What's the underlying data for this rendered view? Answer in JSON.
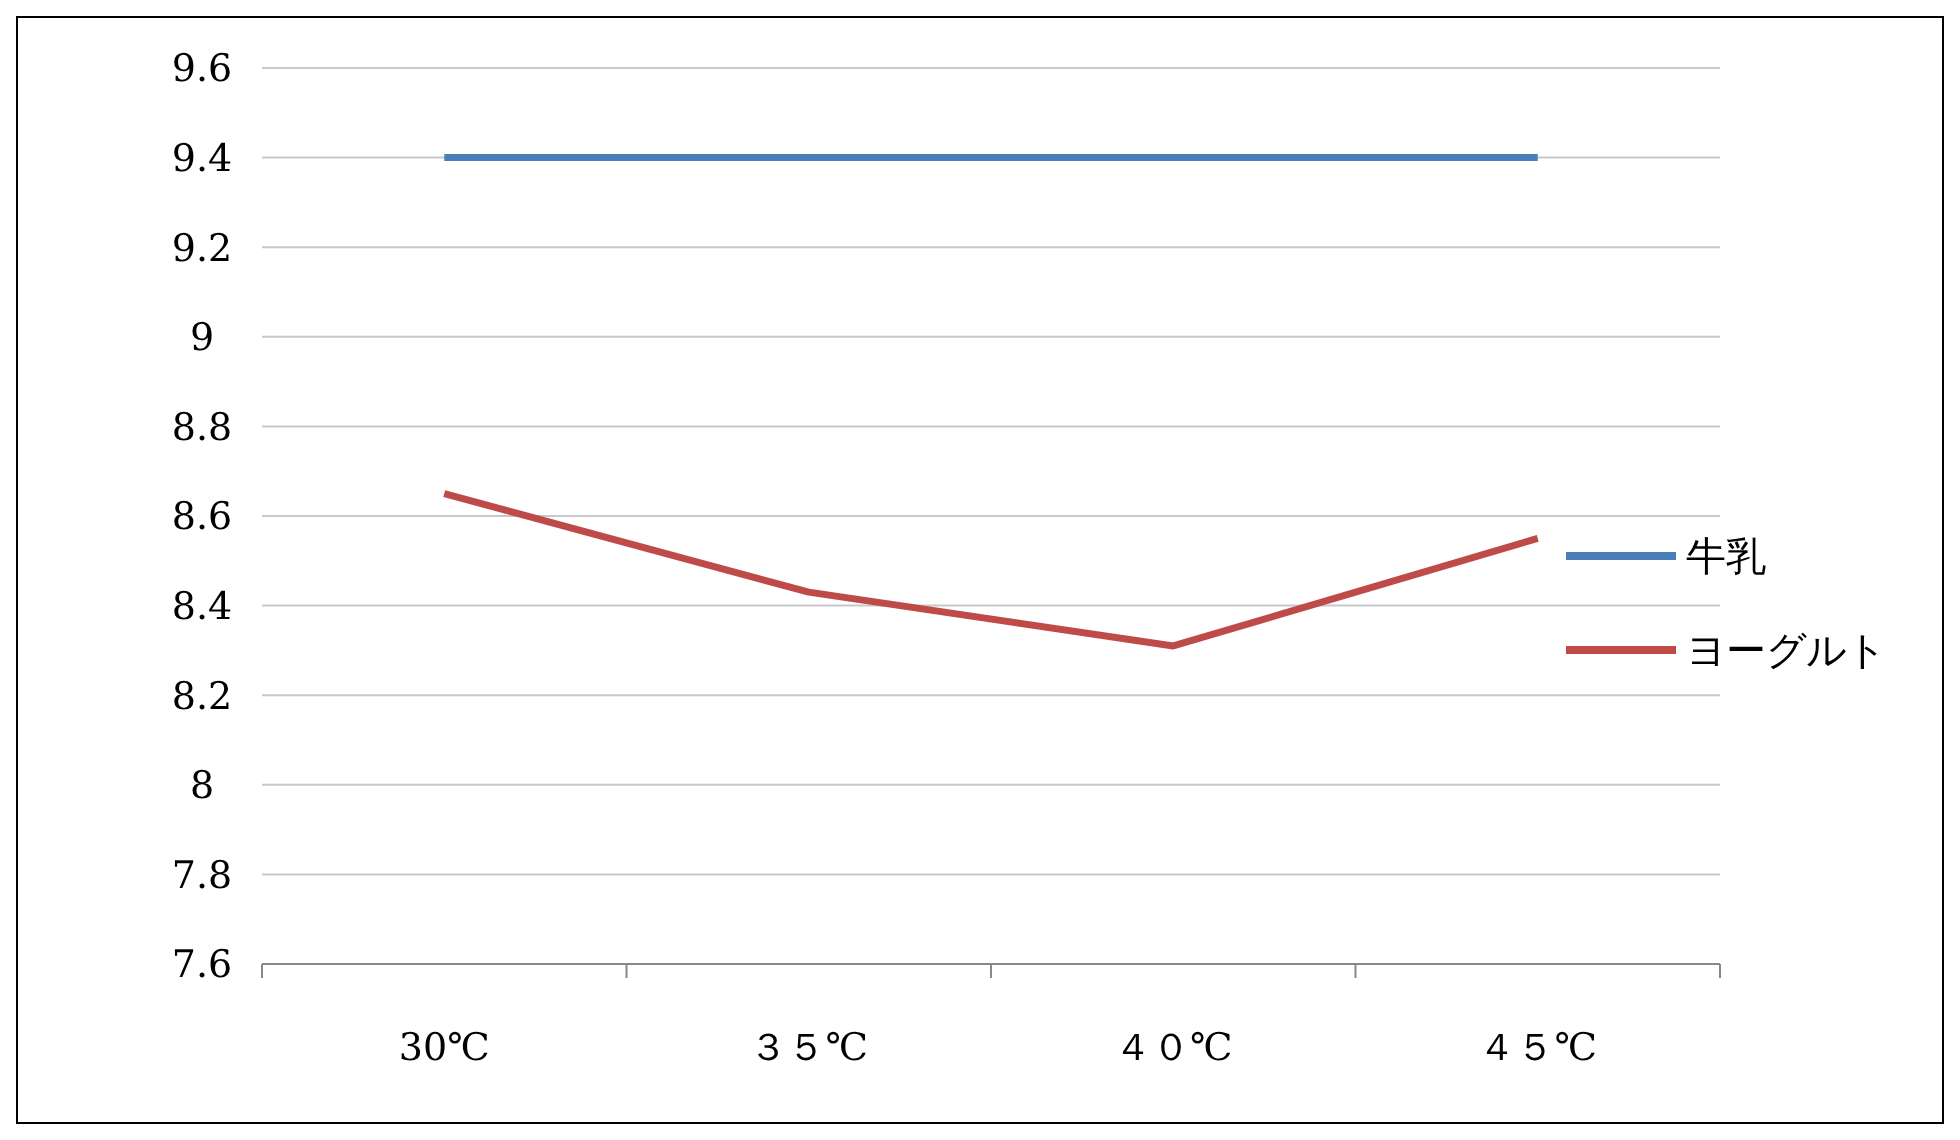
{
  "chart_data": {
    "type": "line",
    "categories": [
      "30℃",
      "３５℃",
      "４０℃",
      "４５℃"
    ],
    "series": [
      {
        "name": "牛乳",
        "color": "#4a7ebb",
        "values": [
          9.4,
          9.4,
          9.4,
          9.4
        ]
      },
      {
        "name": "ヨーグルト",
        "color": "#be4b48",
        "values": [
          8.65,
          8.43,
          8.31,
          8.55
        ]
      }
    ],
    "ylim": [
      7.6,
      9.6
    ],
    "yticks": [
      7.6,
      7.8,
      8,
      8.2,
      8.4,
      8.6,
      8.8,
      9,
      9.2,
      9.4,
      9.6
    ],
    "grid": "y",
    "legend": "right",
    "marker": "none"
  }
}
